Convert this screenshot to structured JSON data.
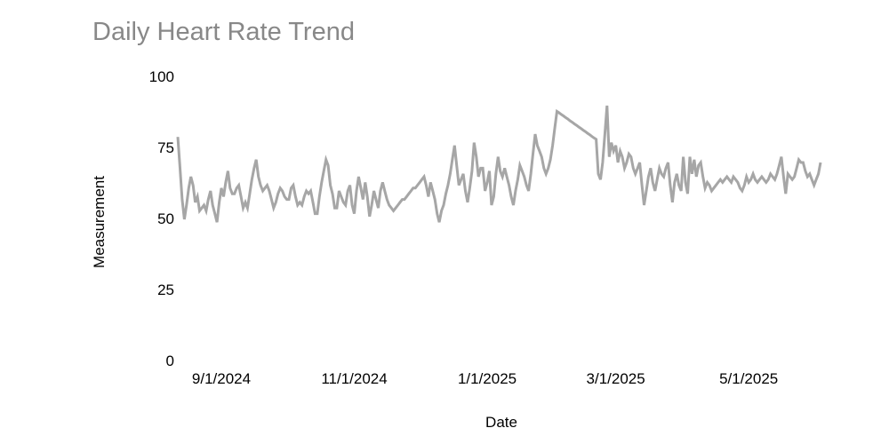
{
  "page": {
    "background": "#ffffff"
  },
  "chart_data": {
    "type": "line",
    "title": "Daily Heart Rate Trend",
    "xlabel": "Date",
    "ylabel": "Measurement",
    "ylim": [
      0,
      100
    ],
    "y_ticks": [
      100,
      75,
      50,
      25,
      0
    ],
    "x_ticks": [
      {
        "label": "9/1/2024",
        "day_index": 20
      },
      {
        "label": "11/1/2024",
        "day_index": 81
      },
      {
        "label": "1/1/2025",
        "day_index": 142
      },
      {
        "label": "3/1/2025",
        "day_index": 201
      },
      {
        "label": "5/1/2025",
        "day_index": 262
      }
    ],
    "grid": false,
    "legend": "none",
    "colors": {
      "line": "#a6a6a6",
      "title_text": "#888888",
      "axis_text": "#000000"
    },
    "series": [
      {
        "frequency": "daily",
        "x_start_date": "8/12/2024",
        "x_end_date": "6/3/2025",
        "values": [
          79,
          68,
          57,
          50,
          55,
          61,
          65,
          62,
          56,
          58,
          53,
          54,
          55,
          53,
          57,
          60,
          55,
          52,
          49,
          56,
          61,
          58,
          63,
          67,
          61,
          59,
          59,
          61,
          62,
          58,
          54,
          56,
          54,
          59,
          64,
          68,
          71,
          65,
          62,
          60,
          61,
          62,
          60,
          57,
          54,
          56,
          59,
          61,
          60,
          58,
          57,
          57,
          61,
          62,
          58,
          55,
          56,
          55,
          58,
          60,
          59,
          60,
          56,
          52,
          52,
          58,
          63,
          67,
          71,
          69,
          62,
          59,
          54,
          54,
          60,
          58,
          56,
          55,
          60,
          62,
          55,
          52,
          60,
          65,
          61,
          57,
          63,
          58,
          51,
          55,
          60,
          57,
          54,
          60,
          63,
          60,
          57,
          55,
          54,
          53,
          54,
          55,
          56,
          57,
          57,
          58,
          59,
          60,
          61,
          61,
          62,
          63,
          64,
          65,
          62,
          58,
          63,
          60,
          57,
          52,
          49,
          53,
          55,
          59,
          62,
          66,
          71,
          76,
          69,
          62,
          64,
          66,
          60,
          56,
          61,
          67,
          77,
          72,
          65,
          68,
          68,
          60,
          63,
          67,
          55,
          58,
          66,
          72,
          67,
          65,
          68,
          65,
          62,
          58,
          55,
          60,
          64,
          69,
          67,
          65,
          62,
          60,
          66,
          73,
          80,
          76,
          74,
          72,
          68,
          66,
          68,
          71,
          76,
          82,
          88,
          87.5,
          86.9,
          86.4,
          85.8,
          85.3,
          84.7,
          84.2,
          83.6,
          83.1,
          82.5,
          82,
          81.4,
          80.9,
          80.3,
          79.8,
          79.2,
          78.7,
          78.2,
          66,
          64,
          70,
          80,
          90,
          72,
          77,
          74,
          76,
          70,
          74,
          72,
          68,
          70,
          73,
          72,
          68,
          66,
          68,
          70,
          62,
          55,
          60,
          65,
          68,
          63,
          60,
          64,
          68,
          66,
          65,
          68,
          70,
          62,
          56,
          63,
          66,
          62,
          60,
          72,
          63,
          59,
          72,
          66,
          71,
          65,
          69,
          70,
          65,
          61,
          63,
          62,
          60,
          61,
          62,
          63,
          64,
          63,
          64,
          65,
          64,
          63,
          65,
          64,
          63,
          61,
          60,
          62,
          65,
          63,
          64,
          66,
          64,
          63,
          64,
          65,
          64,
          63,
          64,
          66,
          65,
          64,
          66,
          69,
          72,
          65,
          59,
          66,
          65,
          64,
          65,
          68,
          71,
          70,
          70,
          67,
          65,
          66,
          64,
          62,
          64,
          66,
          70
        ]
      }
    ]
  }
}
